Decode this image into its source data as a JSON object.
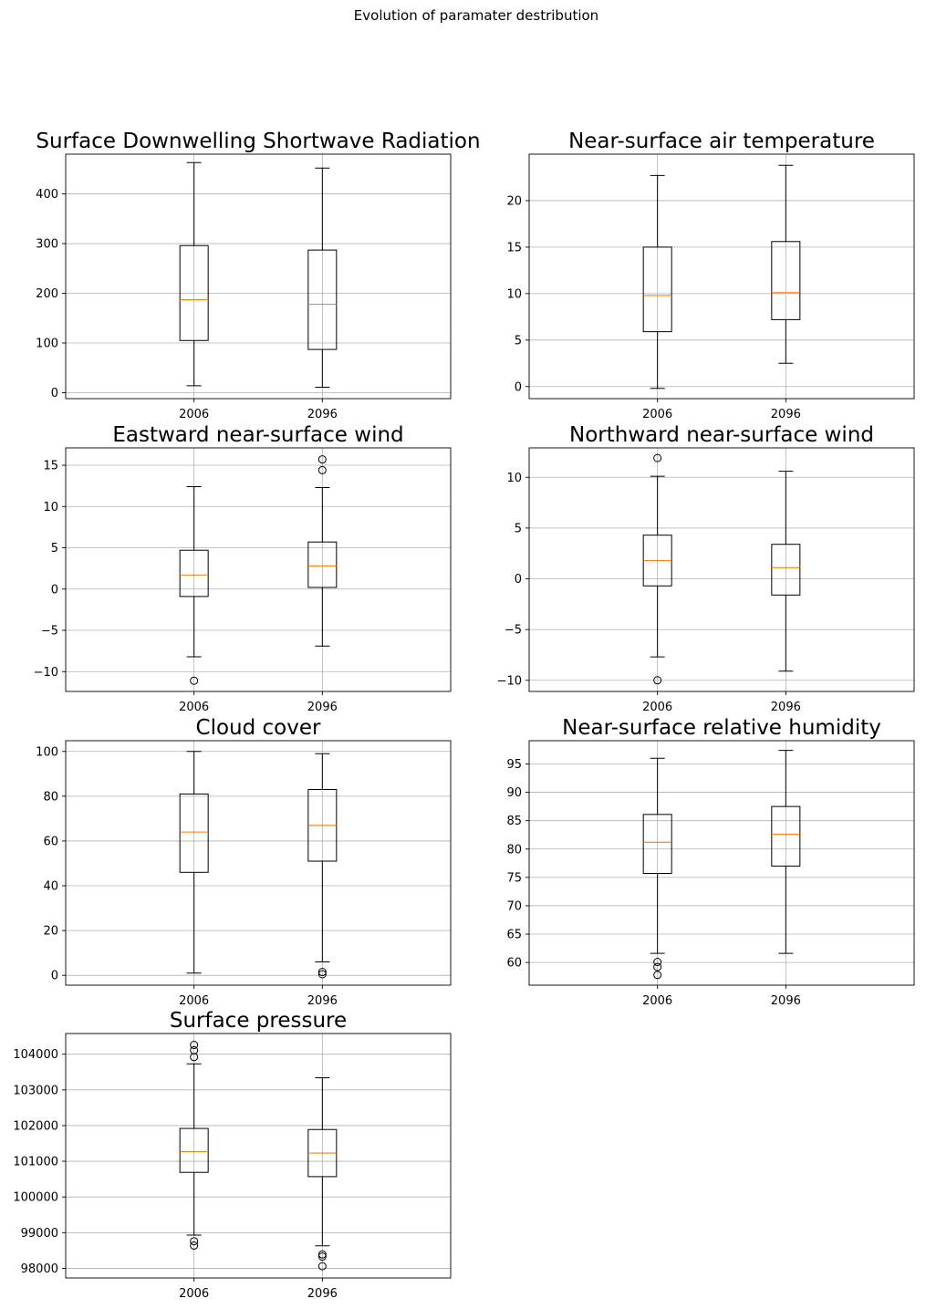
{
  "suptitle": "Evolution of paramater destribution",
  "chart_data": [
    {
      "type": "box",
      "title": "Surface Downwelling Shortwave Radiation",
      "categories": [
        "2006",
        "2096"
      ],
      "ylim": [
        -12,
        480
      ],
      "yticks": [
        0,
        100,
        200,
        300,
        400
      ],
      "ytick_labels": [
        "0",
        "100",
        "200",
        "300",
        "400"
      ],
      "grid": true,
      "boxes": [
        {
          "whisker_low": 14,
          "q1": 105,
          "median": 187,
          "q3": 296,
          "whisker_high": 463,
          "outliers": []
        },
        {
          "whisker_low": 11,
          "q1": 87,
          "median": 178,
          "q3": 287,
          "whisker_high": 452,
          "outliers": []
        }
      ]
    },
    {
      "type": "box",
      "title": "Near-surface air temperature",
      "categories": [
        "2006",
        "2096"
      ],
      "ylim": [
        -1.3,
        25
      ],
      "yticks": [
        0,
        5,
        10,
        15,
        20
      ],
      "ytick_labels": [
        "0",
        "5",
        "10",
        "15",
        "20"
      ],
      "grid": true,
      "boxes": [
        {
          "whisker_low": -0.2,
          "q1": 5.9,
          "median": 9.8,
          "q3": 15.0,
          "whisker_high": 22.7,
          "outliers": []
        },
        {
          "whisker_low": 2.5,
          "q1": 7.2,
          "median": 10.1,
          "q3": 15.6,
          "whisker_high": 23.8,
          "outliers": []
        }
      ]
    },
    {
      "type": "box",
      "title": "Eastward near-surface wind",
      "categories": [
        "2006",
        "2096"
      ],
      "ylim": [
        -12.4,
        17.1
      ],
      "yticks": [
        -10,
        -5,
        0,
        5,
        10,
        15
      ],
      "ytick_labels": [
        "−10",
        "−5",
        "0",
        "5",
        "10",
        "15"
      ],
      "grid": true,
      "boxes": [
        {
          "whisker_low": -8.2,
          "q1": -0.9,
          "median": 1.7,
          "q3": 4.7,
          "whisker_high": 12.4,
          "outliers": [
            -11.1
          ]
        },
        {
          "whisker_low": -6.9,
          "q1": 0.2,
          "median": 2.8,
          "q3": 5.7,
          "whisker_high": 12.3,
          "outliers": [
            14.4,
            15.7
          ]
        }
      ]
    },
    {
      "type": "box",
      "title": "Northward near-surface wind",
      "categories": [
        "2006",
        "2096"
      ],
      "ylim": [
        -11.1,
        12.9
      ],
      "yticks": [
        -10,
        -5,
        0,
        5,
        10
      ],
      "ytick_labels": [
        "−10",
        "−5",
        "0",
        "5",
        "10"
      ],
      "grid": true,
      "boxes": [
        {
          "whisker_low": -7.7,
          "q1": -0.7,
          "median": 1.8,
          "q3": 4.3,
          "whisker_high": 10.1,
          "outliers": [
            -10.0,
            11.9
          ]
        },
        {
          "whisker_low": -9.1,
          "q1": -1.6,
          "median": 1.1,
          "q3": 3.4,
          "whisker_high": 10.6,
          "outliers": []
        }
      ]
    },
    {
      "type": "box",
      "title": "Cloud cover",
      "categories": [
        "2006",
        "2096"
      ],
      "ylim": [
        -4.4,
        104.8
      ],
      "yticks": [
        0,
        20,
        40,
        60,
        80,
        100
      ],
      "ytick_labels": [
        "0",
        "20",
        "40",
        "60",
        "80",
        "100"
      ],
      "grid": true,
      "boxes": [
        {
          "whisker_low": 1,
          "q1": 46,
          "median": 64,
          "q3": 81,
          "whisker_high": 100,
          "outliers": []
        },
        {
          "whisker_low": 6,
          "q1": 51,
          "median": 67,
          "q3": 83,
          "whisker_high": 99,
          "outliers": [
            0.5,
            1.5
          ]
        }
      ]
    },
    {
      "type": "box",
      "title": "Near-surface relative humidity",
      "categories": [
        "2006",
        "2096"
      ],
      "ylim": [
        56,
        99.1
      ],
      "yticks": [
        60,
        65,
        70,
        75,
        80,
        85,
        90,
        95
      ],
      "ytick_labels": [
        "60",
        "65",
        "70",
        "75",
        "80",
        "85",
        "90",
        "95"
      ],
      "grid": true,
      "boxes": [
        {
          "whisker_low": 61.6,
          "q1": 75.7,
          "median": 81.2,
          "q3": 86.1,
          "whisker_high": 96.0,
          "outliers": [
            57.8,
            59.2,
            60.1
          ]
        },
        {
          "whisker_low": 61.6,
          "q1": 77.0,
          "median": 82.6,
          "q3": 87.5,
          "whisker_high": 97.4,
          "outliers": []
        }
      ]
    },
    {
      "type": "box",
      "title": "Surface pressure",
      "categories": [
        "2006",
        "2096"
      ],
      "ylim": [
        97730,
        104580
      ],
      "yticks": [
        98000,
        99000,
        100000,
        101000,
        102000,
        103000,
        104000
      ],
      "ytick_labels": [
        "98000",
        "99000",
        "100000",
        "101000",
        "102000",
        "103000",
        "104000"
      ],
      "grid": true,
      "boxes": [
        {
          "whisker_low": 98930,
          "q1": 100690,
          "median": 101270,
          "q3": 101920,
          "whisker_high": 103730,
          "outliers": [
            98640,
            98760,
            103920,
            104110,
            104260
          ]
        },
        {
          "whisker_low": 98630,
          "q1": 100570,
          "median": 101230,
          "q3": 101890,
          "whisker_high": 103340,
          "outliers": [
            98060,
            98330,
            98390
          ]
        }
      ]
    }
  ]
}
